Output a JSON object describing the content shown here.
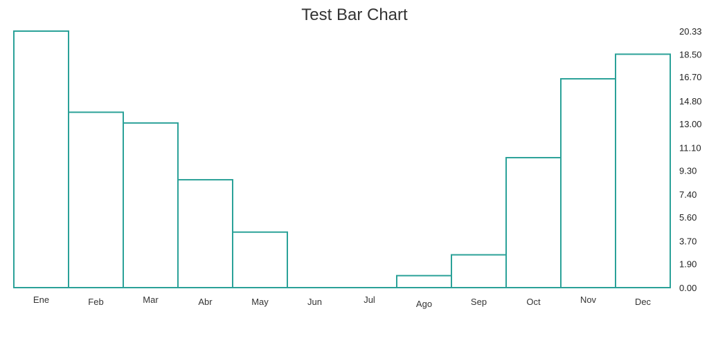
{
  "chart_data": {
    "type": "bar",
    "title": "Test Bar Chart",
    "categories": [
      "Ene",
      "Feb",
      "Mar",
      "Abr",
      "May",
      "Jun",
      "Jul",
      "Ago",
      "Sep",
      "Oct",
      "Nov",
      "Dec"
    ],
    "values": [
      20.33,
      13.9,
      13.05,
      8.55,
      4.4,
      0,
      0,
      0.95,
      2.6,
      10.3,
      16.55,
      18.5
    ],
    "yticks": [
      "0.00",
      "1.90",
      "3.70",
      "5.60",
      "7.40",
      "9.30",
      "11.10",
      "13.00",
      "14.80",
      "16.70",
      "18.50",
      "20.33"
    ],
    "ylim": [
      0,
      20.33
    ],
    "yaxis_position": "right",
    "grid": false,
    "legend": false,
    "colors": {
      "bar_stroke": "#2aa198",
      "bar_fill": "#ffffff",
      "axis": "#2aa198"
    }
  }
}
